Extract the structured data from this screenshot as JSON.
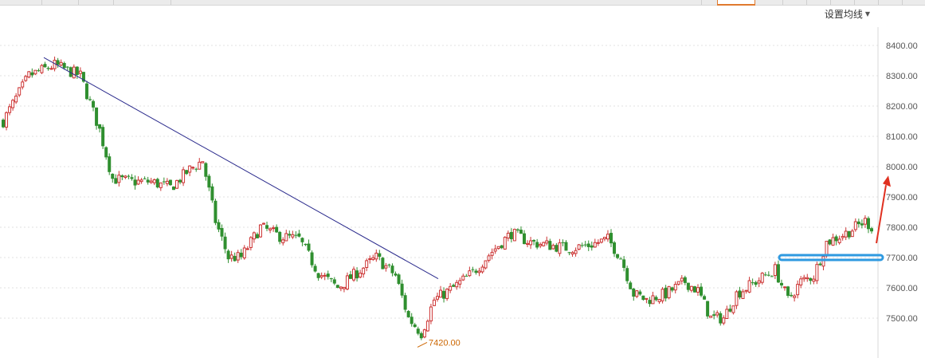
{
  "toolbar": {
    "ma_settings_label": "设置均线",
    "ma_settings_icon": "chevron-down-icon"
  },
  "colors": {
    "up": "#cc3333",
    "down": "#2f8f2f",
    "trendline": "#2a2a8c",
    "highlight": "#2f9ae0",
    "arrow": "#e03020",
    "annotation": "#cc6600",
    "tab_active": "#e07a2e"
  },
  "chart_data": {
    "type": "candlestick",
    "title": "",
    "xlabel": "",
    "ylabel": "",
    "ylim": [
      7400,
      8500
    ],
    "y_ticks": [
      {
        "value": 8400,
        "label": "8400.00"
      },
      {
        "value": 8300,
        "label": "8300.00"
      },
      {
        "value": 8200,
        "label": "8200.00"
      },
      {
        "value": 8100,
        "label": "8100.00"
      },
      {
        "value": 8000,
        "label": "8000.00"
      },
      {
        "value": 7900,
        "label": "7900.00"
      },
      {
        "value": 7800,
        "label": "7800.00"
      },
      {
        "value": 7700,
        "label": "7700.00"
      },
      {
        "value": 7600,
        "label": "7600.00"
      },
      {
        "value": 7500,
        "label": "7500.00"
      }
    ],
    "grid": "horizontal-dotted",
    "annotations": [
      {
        "kind": "low-marker",
        "label": "7420.00",
        "value": 7420
      }
    ],
    "trend_line": {
      "from_value": 8360,
      "to_value": 7630
    },
    "highlight_level": 7700,
    "arrow_target": 7960
  }
}
